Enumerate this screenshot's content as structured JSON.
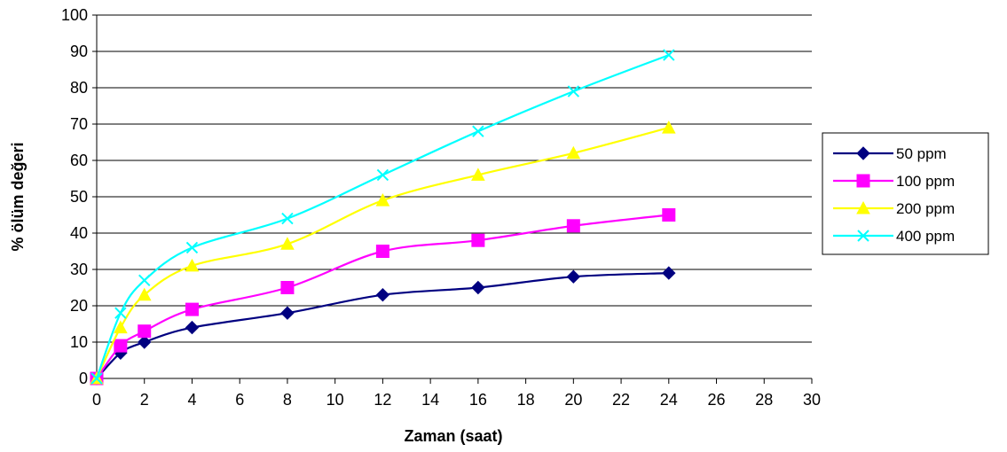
{
  "chart_data": {
    "type": "line",
    "xlabel": "Zaman (saat)",
    "ylabel": "% ölüm değeri",
    "xlim": [
      0,
      30
    ],
    "ylim": [
      0,
      100
    ],
    "x_ticks": [
      "0",
      "2",
      "4",
      "6",
      "8",
      "10",
      "12",
      "14",
      "16",
      "18",
      "20",
      "22",
      "24",
      "26",
      "28",
      "30"
    ],
    "y_ticks": [
      "0",
      "10",
      "20",
      "30",
      "40",
      "50",
      "60",
      "70",
      "80",
      "90",
      "100"
    ],
    "grid": "horizontal",
    "legend_position": "right",
    "series": [
      {
        "name": "50 ppm",
        "color": "#000080",
        "marker": "diamond",
        "points": [
          [
            0,
            0
          ],
          [
            1,
            7
          ],
          [
            2,
            10
          ],
          [
            4,
            14
          ],
          [
            8,
            18
          ],
          [
            12,
            23
          ],
          [
            16,
            25
          ],
          [
            20,
            28
          ],
          [
            24,
            29
          ]
        ]
      },
      {
        "name": "100 ppm",
        "color": "#FF00FF",
        "marker": "square",
        "points": [
          [
            0,
            0
          ],
          [
            1,
            9
          ],
          [
            2,
            13
          ],
          [
            4,
            19
          ],
          [
            8,
            25
          ],
          [
            12,
            35
          ],
          [
            16,
            38
          ],
          [
            20,
            42
          ],
          [
            24,
            45
          ]
        ]
      },
      {
        "name": "200 ppm",
        "color": "#FFFF00",
        "marker": "triangle",
        "points": [
          [
            0,
            0
          ],
          [
            1,
            14
          ],
          [
            2,
            23
          ],
          [
            4,
            31
          ],
          [
            8,
            37
          ],
          [
            12,
            49
          ],
          [
            16,
            56
          ],
          [
            20,
            62
          ],
          [
            24,
            69
          ]
        ]
      },
      {
        "name": "400 ppm",
        "color": "#00FFFF",
        "marker": "x",
        "points": [
          [
            0,
            0
          ],
          [
            1,
            18
          ],
          [
            2,
            27
          ],
          [
            4,
            36
          ],
          [
            8,
            44
          ],
          [
            12,
            56
          ],
          [
            16,
            68
          ],
          [
            20,
            79
          ],
          [
            24,
            89
          ]
        ]
      }
    ]
  }
}
